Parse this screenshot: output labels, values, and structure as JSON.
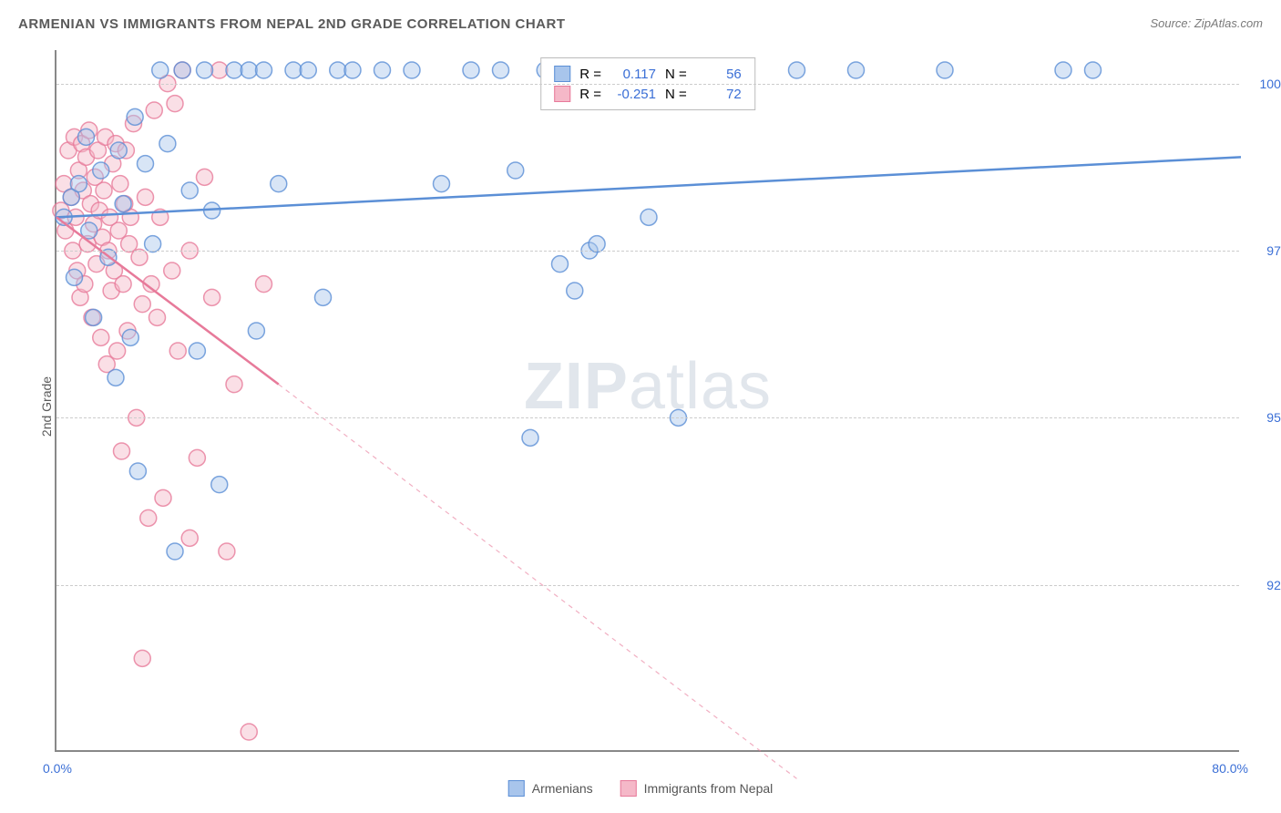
{
  "title": "ARMENIAN VS IMMIGRANTS FROM NEPAL 2ND GRADE CORRELATION CHART",
  "source": "Source: ZipAtlas.com",
  "y_axis_label": "2nd Grade",
  "watermark_zip": "ZIP",
  "watermark_atlas": "atlas",
  "chart": {
    "type": "scatter",
    "background_color": "#ffffff",
    "grid_color": "#cccccc",
    "axis_color": "#888888",
    "text_color": "#5a5a5a",
    "value_color": "#3b6fd6",
    "x_range": [
      0,
      80
    ],
    "y_range": [
      90.0,
      100.5
    ],
    "y_ticks": [
      92.5,
      95.0,
      97.5,
      100.0
    ],
    "y_tick_labels": [
      "92.5%",
      "95.0%",
      "97.5%",
      "100.0%"
    ],
    "x_ticks": [
      0,
      80
    ],
    "x_tick_labels": [
      "0.0%",
      "80.0%"
    ],
    "marker_radius": 9,
    "marker_opacity": 0.45,
    "line_width": 2.5
  },
  "series": [
    {
      "name": "Armenians",
      "color_fill": "#a8c5ec",
      "color_stroke": "#5b8fd6",
      "R": "0.117",
      "N": "56",
      "trend": {
        "x1": 0,
        "y1": 98.0,
        "x2": 80,
        "y2": 98.9,
        "dashed_from_x": 80
      },
      "points": [
        [
          0.5,
          98.0
        ],
        [
          1.0,
          98.3
        ],
        [
          1.2,
          97.1
        ],
        [
          1.5,
          98.5
        ],
        [
          2.0,
          99.2
        ],
        [
          2.2,
          97.8
        ],
        [
          2.5,
          96.5
        ],
        [
          3.0,
          98.7
        ],
        [
          3.5,
          97.4
        ],
        [
          4.0,
          95.6
        ],
        [
          4.2,
          99.0
        ],
        [
          4.5,
          98.2
        ],
        [
          5.0,
          96.2
        ],
        [
          5.3,
          99.5
        ],
        [
          5.5,
          94.2
        ],
        [
          6.0,
          98.8
        ],
        [
          6.5,
          97.6
        ],
        [
          7.0,
          100.2
        ],
        [
          7.5,
          99.1
        ],
        [
          8.0,
          93.0
        ],
        [
          8.5,
          100.2
        ],
        [
          9.0,
          98.4
        ],
        [
          9.5,
          96.0
        ],
        [
          10.0,
          100.2
        ],
        [
          10.5,
          98.1
        ],
        [
          11.0,
          94.0
        ],
        [
          12.0,
          100.2
        ],
        [
          13.0,
          100.2
        ],
        [
          13.5,
          96.3
        ],
        [
          14.0,
          100.2
        ],
        [
          15.0,
          98.5
        ],
        [
          16.0,
          100.2
        ],
        [
          17.0,
          100.2
        ],
        [
          18.0,
          96.8
        ],
        [
          19.0,
          100.2
        ],
        [
          20.0,
          100.2
        ],
        [
          22.0,
          100.2
        ],
        [
          24.0,
          100.2
        ],
        [
          26.0,
          98.5
        ],
        [
          28.0,
          100.2
        ],
        [
          30.0,
          100.2
        ],
        [
          31.0,
          98.7
        ],
        [
          32.0,
          94.7
        ],
        [
          33.0,
          100.2
        ],
        [
          34.0,
          97.3
        ],
        [
          35.0,
          96.9
        ],
        [
          36.0,
          97.5
        ],
        [
          36.5,
          97.6
        ],
        [
          40.0,
          98.0
        ],
        [
          42.0,
          95.0
        ],
        [
          44.0,
          100.2
        ],
        [
          50.0,
          100.2
        ],
        [
          54.0,
          100.2
        ],
        [
          60.0,
          100.2
        ],
        [
          68.0,
          100.2
        ],
        [
          70.0,
          100.2
        ]
      ]
    },
    {
      "name": "Immigrants from Nepal",
      "color_fill": "#f5b8c8",
      "color_stroke": "#e77a9a",
      "R": "-0.251",
      "N": "72",
      "trend": {
        "x1": 0,
        "y1": 98.0,
        "x2": 15,
        "y2": 95.5,
        "dashed_to_x": 50,
        "dashed_to_y": 89.6
      },
      "points": [
        [
          0.3,
          98.1
        ],
        [
          0.5,
          98.5
        ],
        [
          0.6,
          97.8
        ],
        [
          0.8,
          99.0
        ],
        [
          1.0,
          98.3
        ],
        [
          1.1,
          97.5
        ],
        [
          1.2,
          99.2
        ],
        [
          1.3,
          98.0
        ],
        [
          1.4,
          97.2
        ],
        [
          1.5,
          98.7
        ],
        [
          1.6,
          96.8
        ],
        [
          1.7,
          99.1
        ],
        [
          1.8,
          98.4
        ],
        [
          1.9,
          97.0
        ],
        [
          2.0,
          98.9
        ],
        [
          2.1,
          97.6
        ],
        [
          2.2,
          99.3
        ],
        [
          2.3,
          98.2
        ],
        [
          2.4,
          96.5
        ],
        [
          2.5,
          97.9
        ],
        [
          2.6,
          98.6
        ],
        [
          2.7,
          97.3
        ],
        [
          2.8,
          99.0
        ],
        [
          2.9,
          98.1
        ],
        [
          3.0,
          96.2
        ],
        [
          3.1,
          97.7
        ],
        [
          3.2,
          98.4
        ],
        [
          3.3,
          99.2
        ],
        [
          3.4,
          95.8
        ],
        [
          3.5,
          97.5
        ],
        [
          3.6,
          98.0
        ],
        [
          3.7,
          96.9
        ],
        [
          3.8,
          98.8
        ],
        [
          3.9,
          97.2
        ],
        [
          4.0,
          99.1
        ],
        [
          4.1,
          96.0
        ],
        [
          4.2,
          97.8
        ],
        [
          4.3,
          98.5
        ],
        [
          4.4,
          94.5
        ],
        [
          4.5,
          97.0
        ],
        [
          4.6,
          98.2
        ],
        [
          4.7,
          99.0
        ],
        [
          4.8,
          96.3
        ],
        [
          4.9,
          97.6
        ],
        [
          5.0,
          98.0
        ],
        [
          5.2,
          99.4
        ],
        [
          5.4,
          95.0
        ],
        [
          5.6,
          97.4
        ],
        [
          5.8,
          96.7
        ],
        [
          6.0,
          98.3
        ],
        [
          6.2,
          93.5
        ],
        [
          6.4,
          97.0
        ],
        [
          6.6,
          99.6
        ],
        [
          6.8,
          96.5
        ],
        [
          7.0,
          98.0
        ],
        [
          7.2,
          93.8
        ],
        [
          7.5,
          100.0
        ],
        [
          7.8,
          97.2
        ],
        [
          8.0,
          99.7
        ],
        [
          8.2,
          96.0
        ],
        [
          8.5,
          100.2
        ],
        [
          9.0,
          97.5
        ],
        [
          9.5,
          94.4
        ],
        [
          10.0,
          98.6
        ],
        [
          10.5,
          96.8
        ],
        [
          11.0,
          100.2
        ],
        [
          5.8,
          91.4
        ],
        [
          12.0,
          95.5
        ],
        [
          13.0,
          90.3
        ],
        [
          9.0,
          93.2
        ],
        [
          14.0,
          97.0
        ],
        [
          11.5,
          93.0
        ]
      ]
    }
  ],
  "legend": {
    "series1_label": "Armenians",
    "series2_label": "Immigrants from Nepal"
  },
  "stats_labels": {
    "R": "R =",
    "N": "N ="
  }
}
